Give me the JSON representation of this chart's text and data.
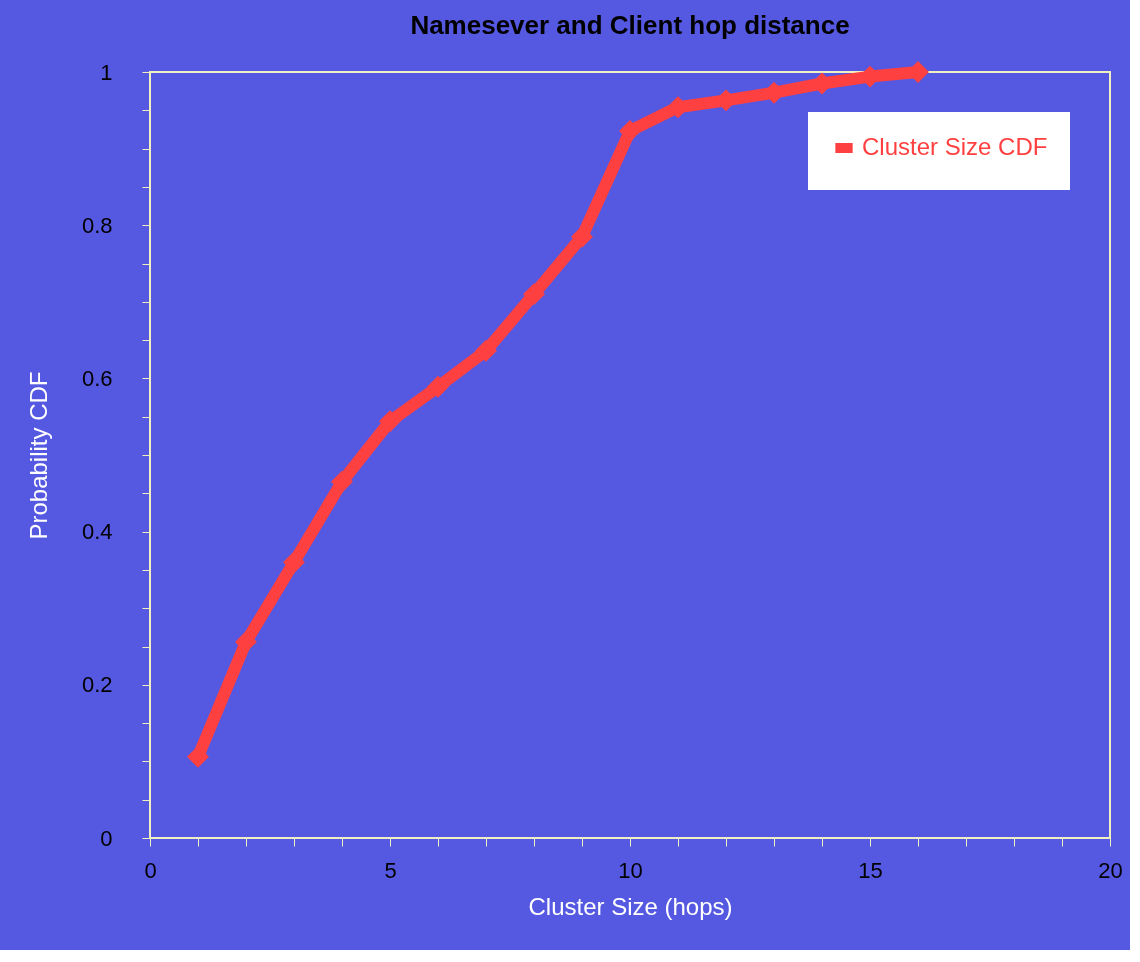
{
  "chart_data": {
    "type": "line",
    "title": "Namesever and Client hop distance",
    "xlabel": "Cluster Size (hops)",
    "ylabel": "Probability CDF",
    "x": [
      1,
      2,
      3,
      4,
      5,
      6,
      7,
      8,
      9,
      10,
      11,
      12,
      13,
      14,
      15,
      16
    ],
    "series": [
      {
        "name": "Cluster Size CDF",
        "color": "#ff4040",
        "values": [
          0.106,
          0.256,
          0.36,
          0.465,
          0.544,
          0.589,
          0.636,
          0.71,
          0.785,
          0.923,
          0.954,
          0.963,
          0.973,
          0.985,
          0.994,
          1
        ]
      }
    ],
    "xlim": [
      0,
      20
    ],
    "xticks": [
      0,
      {
        "value": 1,
        "label": null
      },
      {
        "value": 2,
        "label": null
      },
      {
        "value": 3,
        "label": null
      },
      {
        "value": 4,
        "label": null
      },
      5,
      {
        "value": 6,
        "label": null
      },
      {
        "value": 7,
        "label": null
      },
      {
        "value": 8,
        "label": null
      },
      {
        "value": 9,
        "label": null
      },
      10,
      {
        "value": 11,
        "label": null
      },
      {
        "value": 12,
        "label": null
      },
      {
        "value": 13,
        "label": null
      },
      {
        "value": 14,
        "label": null
      },
      15,
      {
        "value": 16,
        "label": null
      },
      {
        "value": 17,
        "label": null
      },
      {
        "value": 18,
        "label": null
      },
      {
        "value": 19,
        "label": null
      },
      20
    ],
    "ylim": [
      0,
      1
    ],
    "yticks": [
      0,
      {
        "value": 0.05,
        "label": null
      },
      {
        "value": 0.1,
        "label": null
      },
      {
        "value": 0.15,
        "label": null
      },
      0.2,
      {
        "value": 0.25,
        "label": null
      },
      {
        "value": 0.3,
        "label": null
      },
      {
        "value": 0.35,
        "label": null
      },
      0.4,
      {
        "value": 0.45,
        "label": null
      },
      {
        "value": 0.5,
        "label": null
      },
      {
        "value": 0.55,
        "label": null
      },
      0.6,
      {
        "value": 0.65,
        "label": null
      },
      {
        "value": 0.7,
        "label": null
      },
      {
        "value": 0.75,
        "label": null
      },
      0.8,
      {
        "value": 0.85,
        "label": null
      },
      {
        "value": 0.9,
        "label": null
      },
      {
        "value": 0.95,
        "label": null
      },
      1
    ],
    "grid": false,
    "legend": "top right",
    "marker": "diamond",
    "line_style": "solid"
  }
}
